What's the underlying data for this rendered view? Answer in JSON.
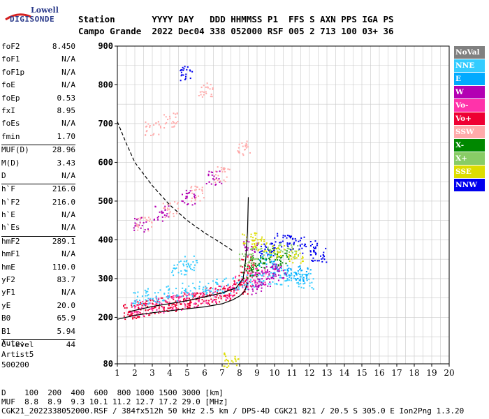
{
  "logo": {
    "top": "Lowell",
    "bottom": "DIGISONDE"
  },
  "header": {
    "line1": "Station       YYYY DAY   DDD HHMMSS P1  FFS S AXN PPS IGA PS",
    "line2": "Campo Grande  2022 Dec04 338 052000 RSF 005 2 713 100 03+ 36"
  },
  "params_groups": [
    [
      [
        "foF2",
        "8.450"
      ],
      [
        "foF1",
        "N/A"
      ],
      [
        "foF1p",
        "N/A"
      ],
      [
        "foE",
        "N/A"
      ],
      [
        "foEp",
        "0.53"
      ],
      [
        "fxI",
        "8.95"
      ],
      [
        "foEs",
        "N/A"
      ],
      [
        "fmin",
        "1.70"
      ]
    ],
    [
      [
        "MUF(D)",
        "28.96"
      ],
      [
        "M(D)",
        "3.43"
      ],
      [
        "D",
        "N/A"
      ]
    ],
    [
      [
        "h`F",
        "216.0"
      ],
      [
        "h`F2",
        "216.0"
      ],
      [
        "h`E",
        "N/A"
      ],
      [
        "h`Es",
        "N/A"
      ]
    ],
    [
      [
        "hmF2",
        "289.1"
      ],
      [
        "hmF1",
        "N/A"
      ],
      [
        "hmE",
        "110.0"
      ],
      [
        "yF2",
        "83.7"
      ],
      [
        "yF1",
        "N/A"
      ],
      [
        "yE",
        "20.0"
      ],
      [
        "B0",
        "65.9"
      ],
      [
        "B1",
        "5.94"
      ]
    ],
    [
      [
        "C-level",
        "44"
      ]
    ]
  ],
  "auto": {
    "l1": "Auto:",
    "l2": "Artist5",
    "l3": "500200"
  },
  "legend": [
    {
      "label": "NoVal",
      "color": "#808080"
    },
    {
      "label": "NNE",
      "color": "#33ccff"
    },
    {
      "label": "E",
      "color": "#00aaff"
    },
    {
      "label": "W",
      "color": "#b300b3"
    },
    {
      "label": "Vo-",
      "color": "#ff33aa"
    },
    {
      "label": "Vo+",
      "color": "#ee0033"
    },
    {
      "label": "SSW",
      "color": "#ffaaaa"
    },
    {
      "label": "X-",
      "color": "#008800"
    },
    {
      "label": "X+",
      "color": "#88cc66"
    },
    {
      "label": "SSE",
      "color": "#dddd00"
    },
    {
      "label": "NNW",
      "color": "#0000ee"
    }
  ],
  "bottom": {
    "l1": "D    100  200  400  600  800 1000 1500 3000 [km]",
    "l2": "MUF  8.8  8.9  9.3 10.1 11.2 12.7 17.2 29.0 [MHz]",
    "l3": "CGK21_2022338052000.RSF / 384fx512h 50 kHz 2.5 km / DPS-4D CGK21 821 / 20.5 S 305.0 E Ion2Png 1.3.20"
  },
  "chart_data": {
    "type": "scatter",
    "xlim": [
      1,
      20
    ],
    "ylim": [
      80,
      900
    ],
    "xticks": [
      1,
      2,
      3,
      4,
      5,
      6,
      7,
      8,
      9,
      10,
      11,
      12,
      13,
      14,
      15,
      16,
      17,
      18,
      19,
      20
    ],
    "yticks": [
      80,
      200,
      300,
      400,
      500,
      600,
      700,
      800,
      900
    ],
    "grid": true,
    "legend_position": "right",
    "series": [
      {
        "name": "Vo+",
        "color": "#ee0033",
        "points": [
          [
            1.7,
            215
          ],
          [
            2.0,
            218
          ],
          [
            2.5,
            222
          ],
          [
            3.0,
            228
          ],
          [
            3.5,
            232
          ],
          [
            4.0,
            236
          ],
          [
            4.5,
            240
          ],
          [
            5.0,
            244
          ],
          [
            5.5,
            247
          ],
          [
            6.0,
            252
          ],
          [
            6.5,
            258
          ],
          [
            7.0,
            265
          ],
          [
            7.5,
            272
          ],
          [
            8.0,
            282
          ],
          [
            8.3,
            300
          ],
          [
            8.45,
            340
          ]
        ]
      },
      {
        "name": "Vo-",
        "color": "#ff33aa",
        "points": [
          [
            2.2,
            225
          ],
          [
            3.2,
            233
          ],
          [
            4.2,
            240
          ],
          [
            5.2,
            248
          ],
          [
            6.2,
            256
          ],
          [
            7.2,
            268
          ],
          [
            8.0,
            290
          ],
          [
            8.7,
            310
          ],
          [
            9.2,
            305
          ]
        ]
      },
      {
        "name": "NNE",
        "color": "#33ccff",
        "points": [
          [
            2.3,
            250
          ],
          [
            3.0,
            258
          ],
          [
            4.0,
            264
          ],
          [
            5.0,
            270
          ],
          [
            6.0,
            278
          ],
          [
            7.0,
            283
          ],
          [
            8.0,
            292
          ],
          [
            9.0,
            300
          ],
          [
            10.0,
            305
          ],
          [
            11.0,
            300
          ],
          [
            11.8,
            295
          ],
          [
            4.5,
            330
          ],
          [
            5.2,
            340
          ]
        ]
      },
      {
        "name": "E",
        "color": "#00aaff",
        "points": [
          [
            9.5,
            350
          ],
          [
            10.3,
            330
          ],
          [
            11.0,
            320
          ],
          [
            11.6,
            310
          ]
        ]
      },
      {
        "name": "W",
        "color": "#b300b3",
        "points": [
          [
            8.8,
            280
          ],
          [
            9.3,
            300
          ],
          [
            9.8,
            320
          ],
          [
            10.2,
            315
          ],
          [
            8.6,
            380
          ],
          [
            2.3,
            440
          ],
          [
            3.5,
            470
          ],
          [
            5.0,
            510
          ],
          [
            6.5,
            560
          ]
        ]
      },
      {
        "name": "X-",
        "color": "#008800",
        "points": [
          [
            8.6,
            320
          ],
          [
            9.0,
            340
          ],
          [
            9.7,
            360
          ],
          [
            10.5,
            355
          ]
        ]
      },
      {
        "name": "X+",
        "color": "#88cc66",
        "points": [
          [
            8.4,
            350
          ],
          [
            9.0,
            370
          ],
          [
            10.0,
            380
          ],
          [
            11.0,
            370
          ]
        ]
      },
      {
        "name": "SSE",
        "color": "#dddd00",
        "points": [
          [
            8.5,
            400
          ],
          [
            9.2,
            390
          ],
          [
            10.1,
            370
          ],
          [
            11.2,
            360
          ],
          [
            7.5,
            90
          ]
        ]
      },
      {
        "name": "NNW",
        "color": "#0000ee",
        "points": [
          [
            9.5,
            380
          ],
          [
            10.4,
            400
          ],
          [
            11.3,
            395
          ],
          [
            12.0,
            380
          ],
          [
            12.5,
            360
          ],
          [
            5.0,
            830
          ]
        ]
      },
      {
        "name": "SSW",
        "color": "#ffaaaa",
        "points": [
          [
            2.5,
            445
          ],
          [
            4.0,
            480
          ],
          [
            5.5,
            520
          ],
          [
            7.0,
            570
          ],
          [
            8.2,
            640
          ],
          [
            3.0,
            690
          ],
          [
            4.0,
            710
          ],
          [
            6.0,
            790
          ]
        ]
      }
    ],
    "profile_curve": [
      [
        1.0,
        195
      ],
      [
        2.0,
        205
      ],
      [
        3.0,
        212
      ],
      [
        4.0,
        217
      ],
      [
        5.0,
        222
      ],
      [
        6.0,
        227
      ],
      [
        7.0,
        235
      ],
      [
        7.6,
        245
      ],
      [
        8.0,
        255
      ],
      [
        8.3,
        268
      ],
      [
        8.45,
        289
      ]
    ],
    "trace_curve": [
      [
        1.7,
        215
      ],
      [
        3.0,
        228
      ],
      [
        5.0,
        243
      ],
      [
        7.0,
        263
      ],
      [
        7.8,
        276
      ],
      [
        8.2,
        300
      ],
      [
        8.35,
        350
      ],
      [
        8.45,
        420
      ],
      [
        8.5,
        510
      ]
    ],
    "muf_curve": [
      [
        1.0,
        705
      ],
      [
        1.5,
        650
      ],
      [
        2.0,
        600
      ],
      [
        3.0,
        540
      ],
      [
        4.0,
        490
      ],
      [
        5.0,
        450
      ],
      [
        6.0,
        418
      ],
      [
        7.0,
        390
      ],
      [
        7.6,
        372
      ]
    ]
  }
}
